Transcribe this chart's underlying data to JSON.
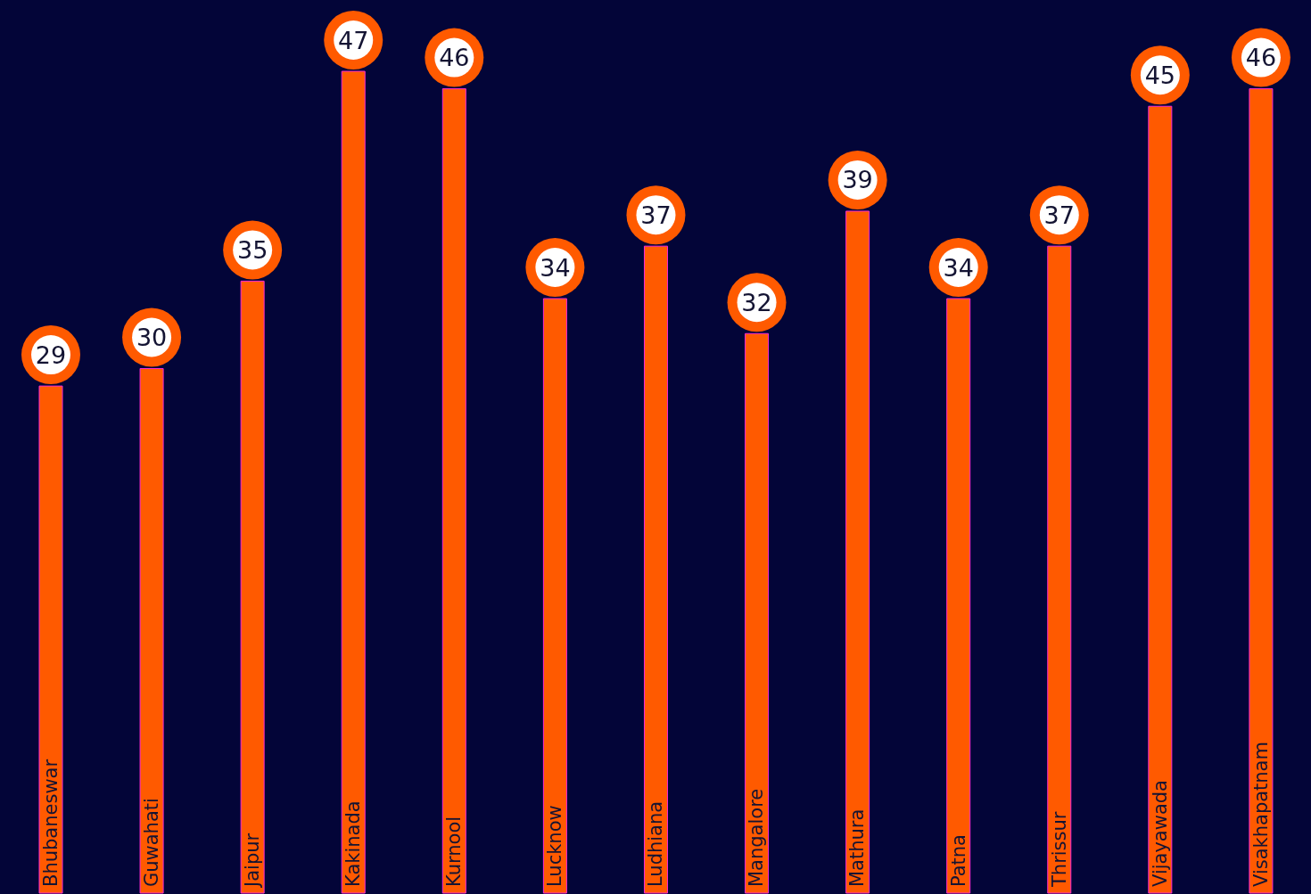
{
  "chart_data": {
    "type": "bar",
    "categories": [
      "Bhubaneswar",
      "Guwahati",
      "Jaipur",
      "Kakinada",
      "Kurnool",
      "Lucknow",
      "Ludhiana",
      "Mangalore",
      "Mathura",
      "Patna",
      "Thrissur",
      "Vijayawada",
      "Visakhapatnam"
    ],
    "values": [
      29,
      30,
      35,
      47,
      46,
      34,
      37,
      32,
      39,
      34,
      37,
      45,
      46
    ],
    "color": "#ff5a00",
    "data_labels": true,
    "grid": false,
    "legend": false
  }
}
